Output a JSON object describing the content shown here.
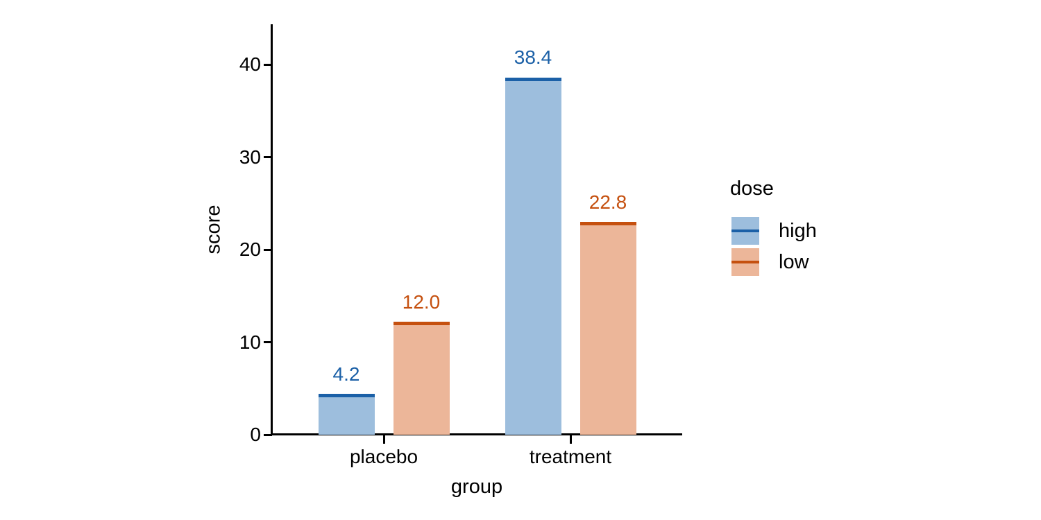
{
  "chart_data": {
    "type": "bar",
    "xlabel": "group",
    "ylabel": "score",
    "categories": [
      "placebo",
      "treatment"
    ],
    "series": [
      {
        "name": "high",
        "values": [
          4.2,
          38.4
        ],
        "labels": [
          "4.2",
          "38.4"
        ],
        "fill_color": "#9dbedd",
        "edge_color": "#1b60a7"
      },
      {
        "name": "low",
        "values": [
          12.0,
          22.8
        ],
        "labels": [
          "12.0",
          "22.8"
        ],
        "fill_color": "#ecb699",
        "edge_color": "#c5500f"
      }
    ],
    "y_ticks": [
      0,
      10,
      20,
      30,
      40
    ],
    "y_tick_labels": [
      "0",
      "10",
      "20",
      "30",
      "40"
    ],
    "ylim": [
      0,
      44.3
    ],
    "grid": false,
    "legend": {
      "title": "dose",
      "entries": [
        "high",
        "low"
      ],
      "position": "right"
    }
  },
  "colors": {
    "background": "#ffffff",
    "axis": "#000000",
    "text": "#000000"
  }
}
